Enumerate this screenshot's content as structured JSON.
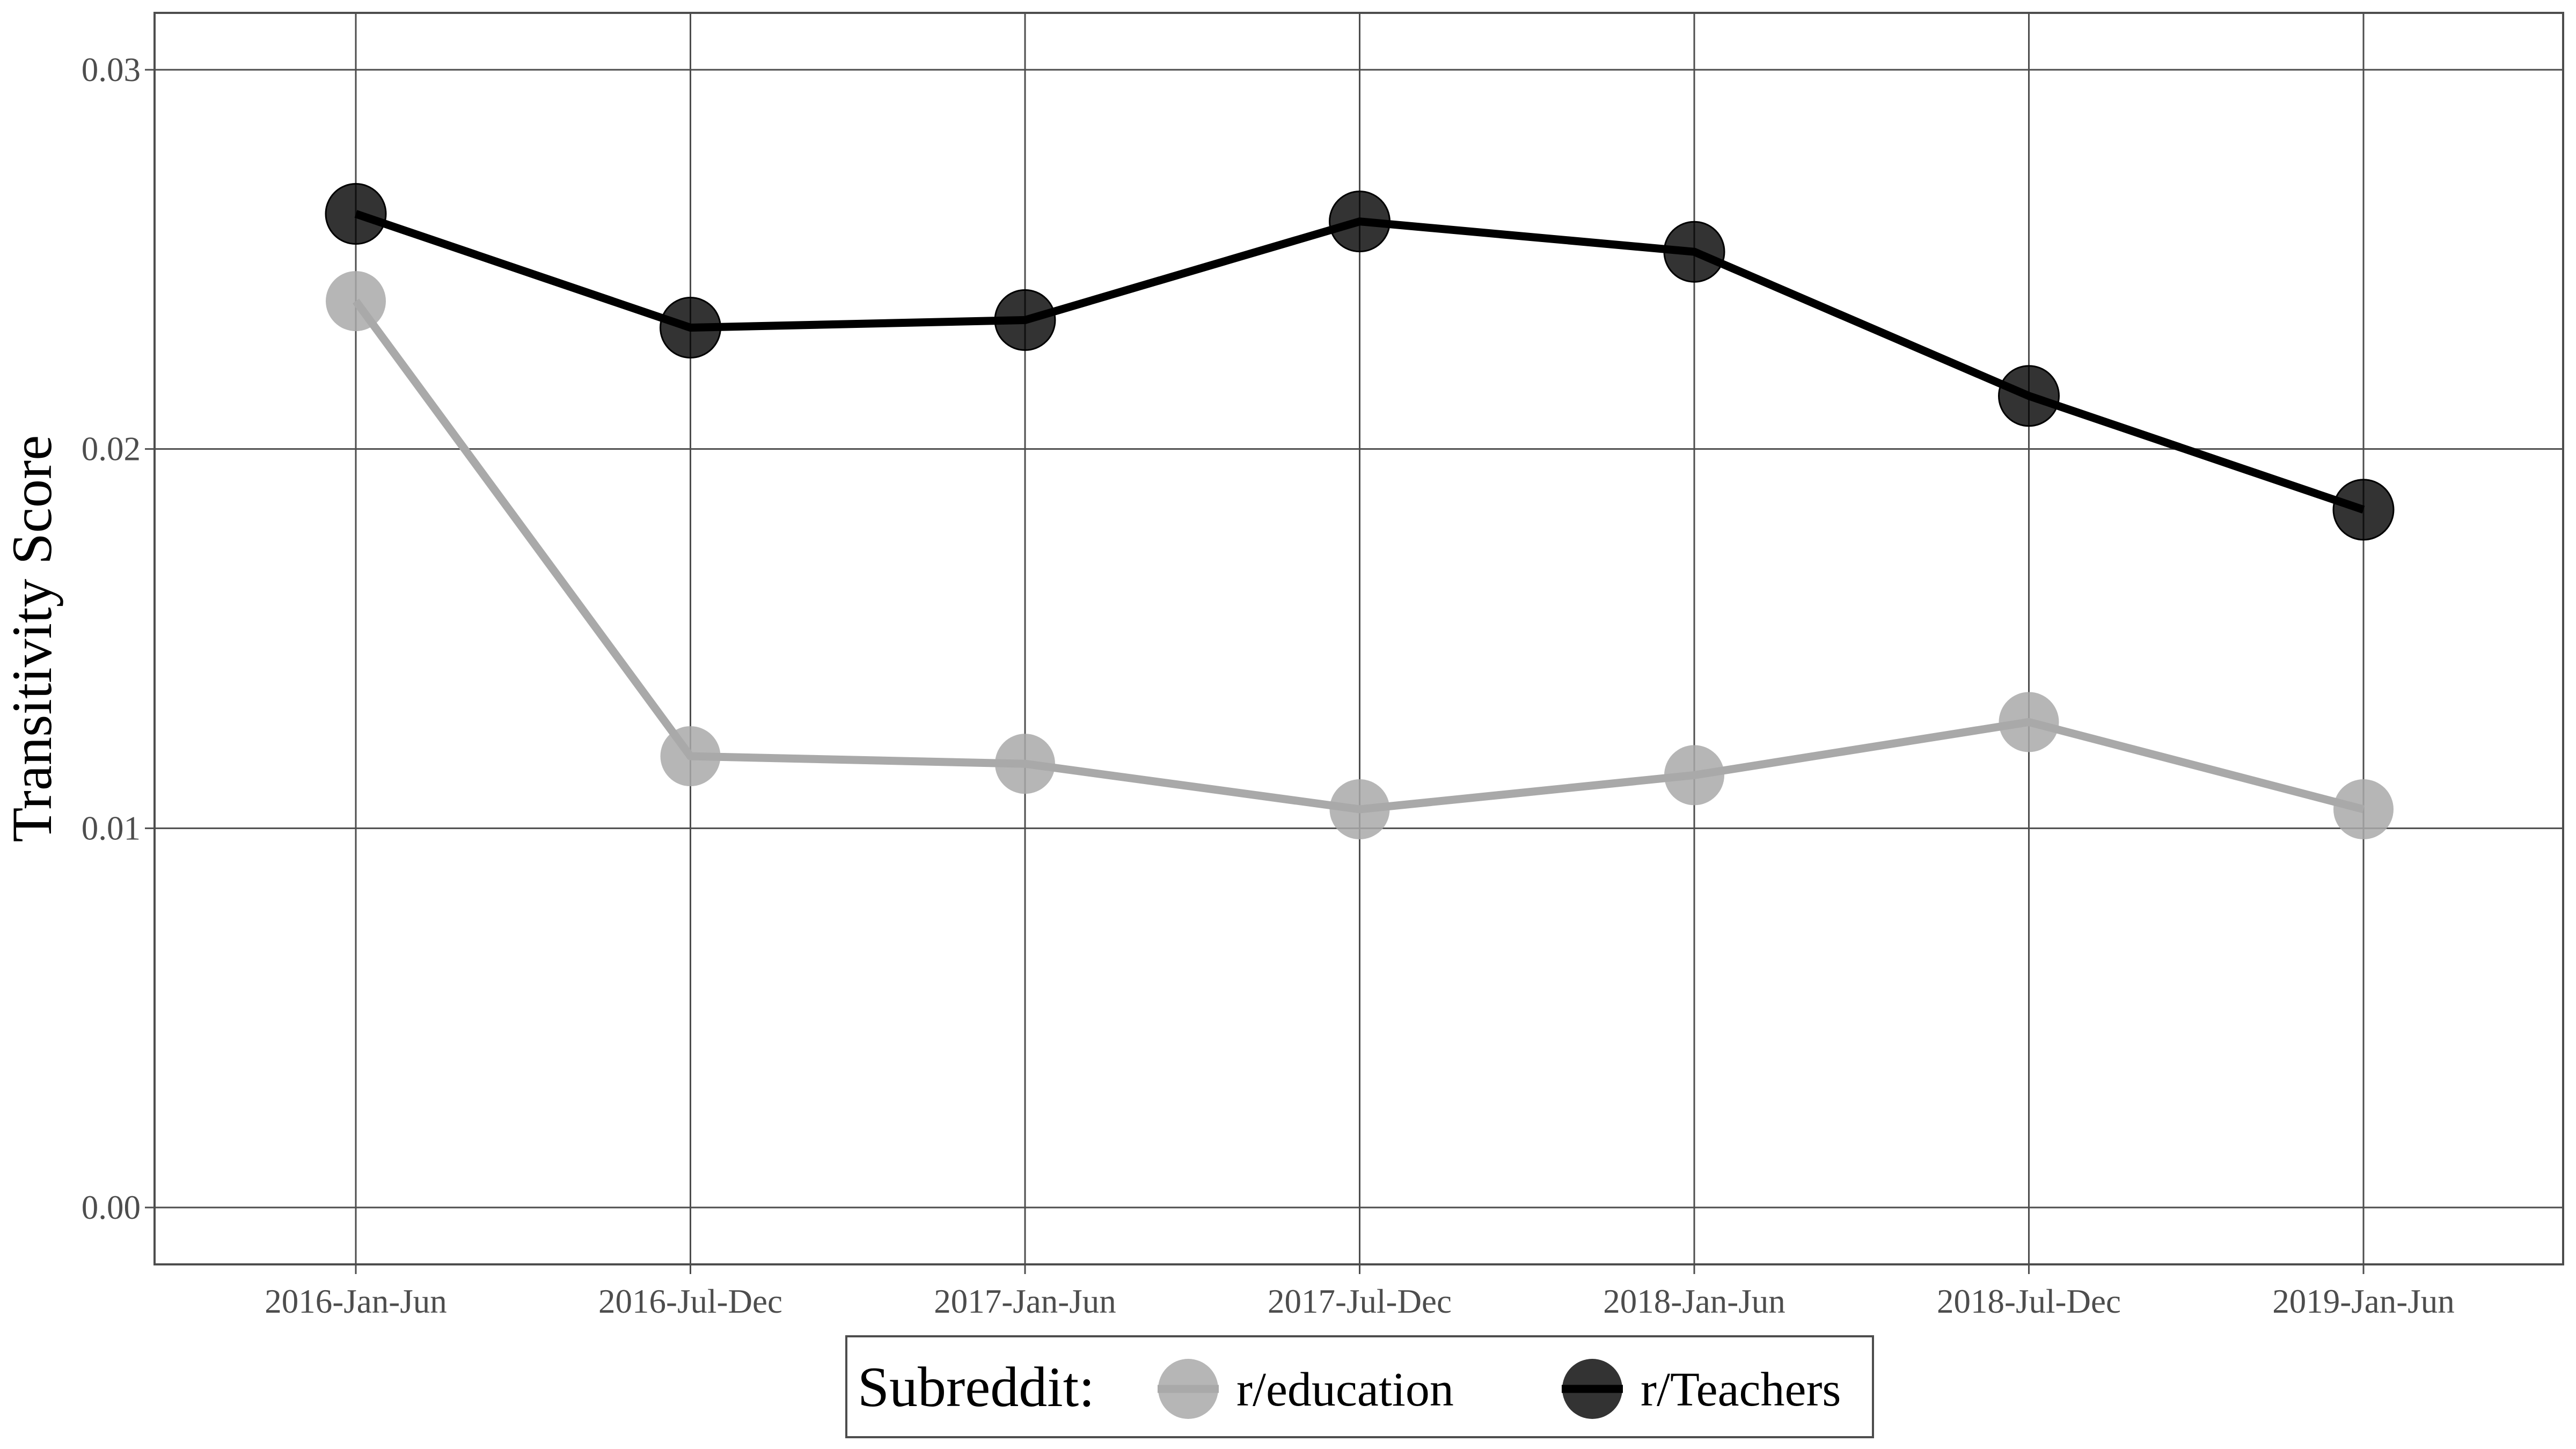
{
  "chart_data": {
    "type": "line",
    "title": "",
    "xlabel": "",
    "ylabel": "Transitivity Score",
    "categories": [
      "2016-Jan-Jun",
      "2016-Jul-Dec",
      "2017-Jan-Jun",
      "2017-Jul-Dec",
      "2018-Jan-Jun",
      "2018-Jul-Dec",
      "2019-Jan-Jun"
    ],
    "y_ticks": [
      "0.00",
      "0.01",
      "0.02",
      "0.03"
    ],
    "ylim": [
      -0.0015,
      0.0315
    ],
    "grid": true,
    "legend_position": "bottom",
    "legend_title": "Subreddit:",
    "series": [
      {
        "name": "r/education",
        "color": "#a9a9a9",
        "values": [
          0.0239,
          0.0119,
          0.0117,
          0.0105,
          0.0114,
          0.0128,
          0.0105
        ]
      },
      {
        "name": "r/Teachers",
        "color": "#000000",
        "values": [
          0.0262,
          0.0232,
          0.0234,
          0.026,
          0.0252,
          0.0214,
          0.0184
        ]
      }
    ]
  }
}
